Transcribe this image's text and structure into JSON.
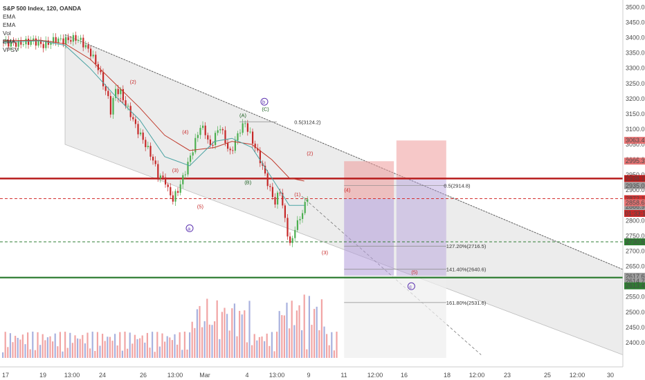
{
  "header": {
    "title": "S&P 500 Index, 120, OANDA",
    "indicators": [
      "EMA",
      "EMA",
      "Vol",
      "EMA",
      "VPSV"
    ]
  },
  "colors": {
    "bull": "#e8746f",
    "bear": "#9a86d6",
    "ema_red": "#c0392b",
    "ema_teal": "#4aa3a3",
    "ema_blue": "#6a7fc0",
    "channel": "#dcdcdc",
    "red_line": "#b71c1c",
    "green_line": "#2e7d32",
    "wave": "#c62828",
    "circle": "#5e35b1",
    "vol_up": "#ef9a9a",
    "vol_down": "#9fa8da"
  },
  "chart_data": {
    "type": "candlestick",
    "title": "S&P 500 Index, 120, OANDA",
    "ylim": [
      2350,
      3510
    ],
    "y_ticks": [
      2400,
      2450,
      2500,
      2550,
      2600,
      2650,
      2700,
      2750,
      2800,
      2850,
      2900,
      2950,
      3000,
      3050,
      3100,
      3150,
      3200,
      3250,
      3300,
      3350,
      3400,
      3450,
      3500
    ],
    "x_ticks": [
      "17",
      "19",
      "13:00",
      "24",
      "26",
      "13:00",
      "Mar",
      "4",
      "13:00",
      "9",
      "11",
      "12:00",
      "16",
      "18",
      "12:00",
      "23",
      "25",
      "12:00",
      "30"
    ],
    "price_path": [
      [
        3385,
        0
      ],
      [
        3380,
        7
      ],
      [
        3390,
        13
      ],
      [
        3375,
        17
      ],
      [
        3395,
        22
      ],
      [
        3390,
        25
      ],
      [
        3395,
        28
      ],
      [
        3398,
        30
      ],
      [
        3390,
        32
      ],
      [
        3380,
        33
      ],
      [
        3350,
        36
      ],
      [
        3300,
        39
      ],
      [
        3250,
        41
      ],
      [
        3200,
        43
      ],
      [
        3160,
        44
      ],
      [
        3230,
        46
      ],
      [
        3220,
        48
      ],
      [
        3180,
        50
      ],
      [
        3150,
        52
      ],
      [
        3110,
        54
      ],
      [
        3080,
        56
      ],
      [
        3050,
        58
      ],
      [
        3000,
        61
      ],
      [
        2950,
        63
      ],
      [
        2930,
        66
      ],
      [
        2900,
        67
      ],
      [
        2870,
        69
      ],
      [
        2900,
        71
      ],
      [
        2940,
        73
      ],
      [
        3010,
        76
      ],
      [
        3060,
        78
      ],
      [
        3110,
        80
      ],
      [
        3090,
        82
      ],
      [
        3040,
        84
      ],
      [
        3080,
        86
      ],
      [
        3110,
        88
      ],
      [
        3060,
        90
      ],
      [
        3020,
        92
      ],
      [
        3060,
        94
      ],
      [
        3100,
        96
      ],
      [
        3120,
        98
      ],
      [
        3080,
        100
      ],
      [
        3040,
        102
      ],
      [
        3000,
        104
      ],
      [
        2950,
        106
      ],
      [
        2900,
        108
      ],
      [
        2860,
        110
      ],
      [
        2880,
        111
      ],
      [
        2900,
        112
      ],
      [
        2850,
        113
      ],
      [
        2800,
        114
      ],
      [
        2760,
        115
      ],
      [
        2720,
        116
      ],
      [
        2740,
        117
      ],
      [
        2780,
        118
      ],
      [
        2790,
        119
      ],
      [
        2810,
        120
      ],
      [
        2830,
        121
      ],
      [
        2850,
        122
      ],
      [
        2880,
        123
      ]
    ],
    "ema_lines": [
      {
        "name": "EMA",
        "color": "#c0392b",
        "points": [
          [
            3390,
            0
          ],
          [
            3392,
            15
          ],
          [
            3380,
            25
          ],
          [
            3330,
            35
          ],
          [
            3250,
            45
          ],
          [
            3170,
            55
          ],
          [
            3080,
            65
          ],
          [
            3030,
            75
          ],
          [
            3040,
            85
          ],
          [
            3060,
            92
          ],
          [
            3050,
            100
          ],
          [
            3000,
            108
          ],
          [
            2940,
            115
          ],
          [
            2930,
            121
          ]
        ]
      },
      {
        "name": "EMA",
        "color": "#4aa3a3",
        "points": [
          [
            3385,
            0
          ],
          [
            3390,
            15
          ],
          [
            3375,
            25
          ],
          [
            3300,
            35
          ],
          [
            3210,
            45
          ],
          [
            3130,
            55
          ],
          [
            3010,
            65
          ],
          [
            2980,
            75
          ],
          [
            3060,
            85
          ],
          [
            3070,
            92
          ],
          [
            3040,
            100
          ],
          [
            2940,
            108
          ],
          [
            2850,
            115
          ],
          [
            2850,
            121
          ]
        ]
      }
    ],
    "horizontal_levels": [
      {
        "value": 2938.1,
        "label": "2938.1",
        "color": "#b71c1c"
      },
      {
        "value": 2935.0,
        "label": "2935.0"
      },
      {
        "value": 2872.1,
        "label": "2872.1",
        "color": "#d32f2f"
      },
      {
        "value": 2866.9,
        "label": "2866.9"
      },
      {
        "value": 2858.6,
        "label": "2858.6"
      },
      {
        "value": 2730.5,
        "label": "2730.5",
        "color": "#2e7d32"
      },
      {
        "value": 2617.6,
        "label": "2617.6"
      },
      {
        "value": 2614.7,
        "label": "2614.7"
      },
      {
        "value": 2613.4,
        "label": "2613.4",
        "color": "#2e7d32"
      },
      {
        "value": 3063.4,
        "label": "3063.4"
      },
      {
        "value": 2995.3,
        "label": "2995.3"
      }
    ],
    "countdown": "01:33:19",
    "fib_labels": [
      {
        "text": "0.5(3124.2)",
        "value": 3124.2
      },
      {
        "text": "0.5(2914.8)",
        "value": 2914.8
      },
      {
        "text": "127.20%(2716.5)",
        "value": 2716.5
      },
      {
        "text": "141.40%(2640.6)",
        "value": 2640.6
      },
      {
        "text": "161.80%(2531.6)",
        "value": 2531.6
      }
    ],
    "wave_labels": [
      "(1)",
      "(2)",
      "(3)",
      "(4)",
      "(5)",
      "(A)",
      "(B)",
      "(C)",
      "(1)",
      "(2)",
      "(3)",
      "(4)",
      "(5)"
    ],
    "circle_labels": [
      "a",
      "b",
      "c"
    ]
  }
}
